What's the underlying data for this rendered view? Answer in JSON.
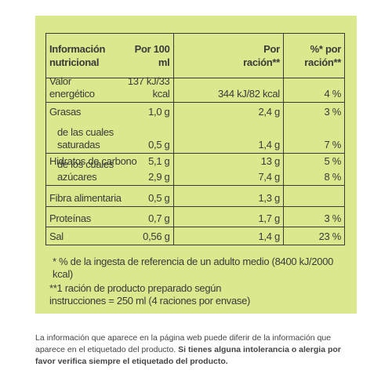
{
  "table": {
    "header": {
      "label": "Información nutricional",
      "per100": "Por 100 ml",
      "portion": "Por ración**",
      "pct": "%* por ración**"
    },
    "groups": [
      {
        "lines": [
          {
            "label": "Valor energético",
            "per100": "137 kJ/33 kcal",
            "portion": "344 kJ/82 kcal",
            "pct": "4 %"
          }
        ]
      },
      {
        "lines": [
          {
            "label": "Grasas",
            "per100": "1,0 g",
            "portion": "2,4 g",
            "pct": "3 %"
          },
          {
            "label": "de las cuales saturadas",
            "per100": "0,5 g",
            "portion": "1,4 g",
            "pct": "7 %"
          }
        ]
      },
      {
        "lines": [
          {
            "label": "Hidratos de carbono",
            "per100": "5,1 g",
            "portion": "13 g",
            "pct": "5 %"
          },
          {
            "label": "de los cuales azúcares",
            "per100": "2,9 g",
            "portion": "7,4 g",
            "pct": "8 %"
          }
        ]
      },
      {
        "lines": [
          {
            "label": "Fibra alimentaria",
            "per100": "0,5 g",
            "portion": "1,3 g"
          }
        ]
      },
      {
        "lines": [
          {
            "label": "Proteínas",
            "per100": "0,7 g",
            "portion": "1,7 g",
            "pct": "3 %"
          }
        ]
      },
      {
        "lines": [
          {
            "label": "Sal",
            "per100": "0,56 g",
            "portion": "1,4 g",
            "pct": "23 %"
          }
        ]
      }
    ]
  },
  "footnotes": [
    "* % de la ingesta de referencia de un adulto medio (8400 kJ/2000 kcal)",
    "**1 ración de producto preparado según instrucciones = 250 ml (4 raciones por envase)"
  ],
  "disclaimer": {
    "text": "La información que aparece en la página web puede diferir de la información que aparece en el etiquetado del producto.",
    "bold": "Si tienes alguna intolerancia o alergia por favor verifica siempre el etiquetado del producto."
  }
}
